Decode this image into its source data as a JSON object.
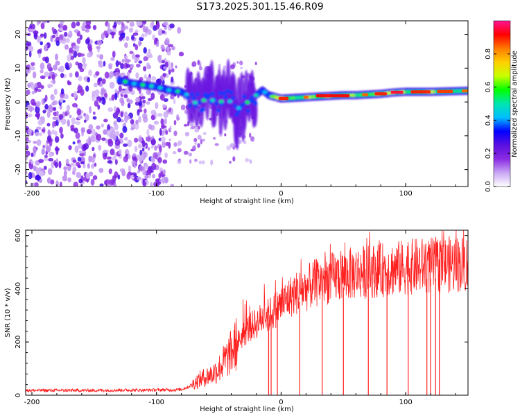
{
  "title": "S173.2025.301.15.46.R09",
  "chart_data": [
    {
      "type": "heatmap",
      "title": "S173.2025.301.15.46.R09",
      "xlabel": "Height of straight line (km)",
      "ylabel": "Frequency (Hz)",
      "xlim": [
        -205,
        150
      ],
      "ylim": [
        -25,
        24
      ],
      "xticks": [
        -200,
        -100,
        0,
        100
      ],
      "yticks": [
        -20,
        -10,
        0,
        10,
        20
      ],
      "colorbar": {
        "label": "Normalized spectral amplitude",
        "range": [
          0,
          1
        ],
        "ticks": [
          "0.0",
          "0.2",
          "0.4",
          "0.6",
          "0.8"
        ],
        "colors": [
          "#ffffff",
          "#c9a6f5",
          "#8a2be2",
          "#5a0fe0",
          "#0000ff",
          "#00bfff",
          "#00e5b0",
          "#00ff00",
          "#c8ff00",
          "#ffd000",
          "#ff7a00",
          "#ff0000",
          "#ff1493"
        ]
      },
      "ridge": {
        "x": [
          -130,
          -120,
          -110,
          -100,
          -90,
          -80,
          -75,
          -70,
          -65,
          -60,
          -55,
          -50,
          -45,
          -40,
          -35,
          -30,
          -25,
          -20,
          -15,
          -10,
          -5,
          0,
          10,
          20,
          30,
          40,
          50,
          60,
          70,
          80,
          90,
          100,
          110,
          120,
          130,
          140,
          150
        ],
        "y": [
          6.5,
          5.5,
          5.0,
          4.5,
          3.5,
          3.0,
          2.0,
          0.0,
          -1.0,
          1.5,
          0.5,
          -0.5,
          1.0,
          0.0,
          -2.0,
          -1.0,
          0.5,
          2.0,
          3.5,
          2.0,
          1.5,
          1.0,
          1.2,
          1.4,
          1.6,
          1.8,
          2.0,
          2.0,
          2.2,
          2.4,
          2.8,
          3.0,
          3.0,
          3.0,
          3.1,
          3.2,
          3.3
        ]
      },
      "noise_region": [
        -205,
        -90
      ]
    },
    {
      "type": "line",
      "xlabel": "Height of straight line (km)",
      "ylabel": "SNR (10 * v/v)",
      "xlim": [
        -205,
        150
      ],
      "ylim": [
        0,
        620
      ],
      "xticks": [
        -200,
        -100,
        0,
        100
      ],
      "yticks": [
        0,
        200,
        400,
        600
      ],
      "color": "#ff2020",
      "series": [
        {
          "name": "SNR",
          "x": [
            -205,
            -190,
            -170,
            -150,
            -130,
            -110,
            -95,
            -85,
            -80,
            -75,
            -70,
            -65,
            -60,
            -55,
            -50,
            -45,
            -40,
            -35,
            -30,
            -25,
            -20,
            -15,
            -10,
            -5,
            0,
            5,
            10,
            15,
            20,
            25,
            30,
            40,
            50,
            60,
            70,
            80,
            90,
            100,
            110,
            120,
            130,
            140,
            150
          ],
          "values": [
            18,
            18,
            18,
            18,
            19,
            19,
            20,
            20,
            22,
            30,
            45,
            60,
            70,
            80,
            100,
            130,
            160,
            200,
            230,
            255,
            270,
            290,
            300,
            320,
            340,
            360,
            380,
            390,
            400,
            415,
            425,
            440,
            450,
            460,
            465,
            470,
            475,
            480,
            485,
            487,
            490,
            492,
            495
          ]
        }
      ],
      "dropouts_x": [
        -10,
        -8,
        -3,
        15,
        33,
        50,
        70,
        85,
        102,
        117,
        120,
        124,
        127
      ]
    }
  ]
}
